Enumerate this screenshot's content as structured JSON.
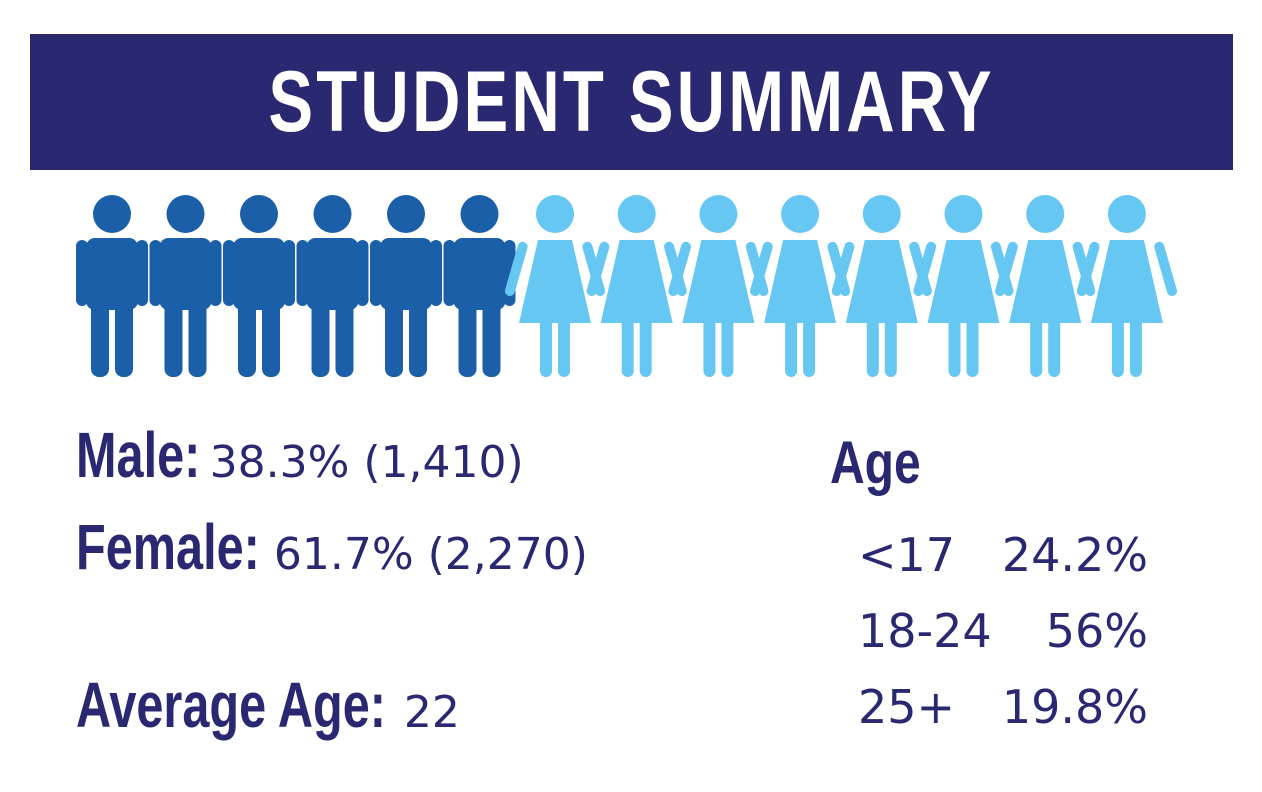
{
  "title": "STUDENT SUMMARY",
  "colors": {
    "banner": "#2a2870",
    "text": "#2a2870",
    "male_icon": "#1a5fa8",
    "female_icon": "#66c8f2"
  },
  "pictogram": {
    "male_icon": "male-person-icon",
    "female_icon": "female-person-icon",
    "male_count": 6,
    "female_count": 8
  },
  "stats": {
    "male_label": "Male:",
    "male_value": "38.3% (1,410)",
    "female_label": "Female:",
    "female_value": "61.7% (2,270)",
    "avg_age_label": "Average Age:",
    "avg_age_value": "22"
  },
  "age": {
    "heading": "Age",
    "rows": [
      {
        "range": "<17",
        "percent": "24.2%"
      },
      {
        "range": "18-24",
        "percent": "56%"
      },
      {
        "range": "25+",
        "percent": "19.8%"
      }
    ]
  }
}
